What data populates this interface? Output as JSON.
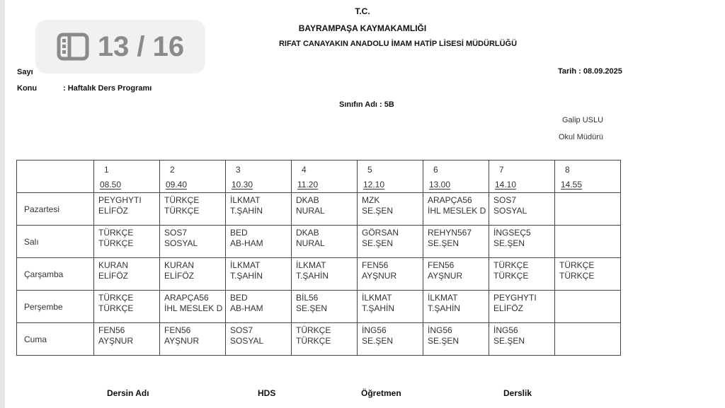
{
  "viewer": {
    "page_indicator": "13 / 16",
    "icon": "sidebar-pages-icon"
  },
  "header": {
    "line1": "T.C.",
    "line2": "BAYRAMPAŞA KAYMAKAMLIĞI",
    "line3": "RIFAT CANAYAKIN ANADOLU İMAM HATİP LİSESİ MÜDÜRLÜĞÜ"
  },
  "meta": {
    "sayi_label": "Sayı",
    "tarih": "Tarih  :  08.09.2025",
    "konu_label": "Konu",
    "konu_value": ": Haftalık Ders Programı",
    "class_name": "Sınıfın Adı : 5B",
    "principal_name": "Galip USLU",
    "principal_title": "Okul Müdürü"
  },
  "schedule": {
    "periods": [
      {
        "num": "1",
        "time": "08.50"
      },
      {
        "num": "2",
        "time": "09.40"
      },
      {
        "num": "3",
        "time": "10.30"
      },
      {
        "num": "4",
        "time": "11.20"
      },
      {
        "num": "5",
        "time": "12.10"
      },
      {
        "num": "6",
        "time": "13.00"
      },
      {
        "num": "7",
        "time": "14.10"
      },
      {
        "num": "8",
        "time": "14.55"
      }
    ],
    "days": [
      {
        "name": "Pazartesi",
        "cells": [
          [
            "PEYGHYTI",
            "ELİFÖZ"
          ],
          [
            "TÜRKÇE",
            "TÜRKÇE"
          ],
          [
            "İLKMAT",
            "T.ŞAHİN"
          ],
          [
            "DKAB",
            "NURAL"
          ],
          [
            "MZK",
            "SE.ŞEN"
          ],
          [
            "ARAPÇA56",
            "İHL MESLEK D"
          ],
          [
            "SOS7",
            "SOSYAL"
          ],
          [
            "",
            ""
          ]
        ]
      },
      {
        "name": "Salı",
        "cells": [
          [
            "TÜRKÇE",
            "TÜRKÇE"
          ],
          [
            "SOS7",
            "SOSYAL"
          ],
          [
            "BED",
            "AB-HAM"
          ],
          [
            "DKAB",
            "NURAL"
          ],
          [
            "GÖRSAN",
            "SE.ŞEN"
          ],
          [
            "REHYN567",
            "SE.ŞEN"
          ],
          [
            "İNGSEÇ5",
            "SE.ŞEN"
          ],
          [
            "",
            ""
          ]
        ]
      },
      {
        "name": "Çarşamba",
        "cells": [
          [
            "KURAN",
            "ELİFÖZ"
          ],
          [
            "KURAN",
            "ELİFÖZ"
          ],
          [
            "İLKMAT",
            "T.ŞAHİN"
          ],
          [
            "İLKMAT",
            "T.ŞAHİN"
          ],
          [
            "FEN56",
            "AYŞNUR"
          ],
          [
            "FEN56",
            "AYŞNUR"
          ],
          [
            "TÜRKÇE",
            "TÜRKÇE"
          ],
          [
            "TÜRKÇE",
            "TÜRKÇE"
          ]
        ]
      },
      {
        "name": "Perşembe",
        "cells": [
          [
            "TÜRKÇE",
            "TÜRKÇE"
          ],
          [
            "ARAPÇA56",
            "İHL MESLEK D"
          ],
          [
            "BED",
            "AB-HAM"
          ],
          [
            "BİL56",
            "SE.ŞEN"
          ],
          [
            "İLKMAT",
            "T.ŞAHİN"
          ],
          [
            "İLKMAT",
            "T.ŞAHİN"
          ],
          [
            "PEYGHYTI",
            "ELİFÖZ"
          ],
          [
            "",
            ""
          ]
        ]
      },
      {
        "name": "Cuma",
        "cells": [
          [
            "FEN56",
            "AYŞNUR"
          ],
          [
            "FEN56",
            "AYŞNUR"
          ],
          [
            "SOS7",
            "SOSYAL"
          ],
          [
            "TÜRKÇE",
            "TÜRKÇE"
          ],
          [
            "İNG56",
            "SE.ŞEN"
          ],
          [
            "İNG56",
            "SE.ŞEN"
          ],
          [
            "İNG56",
            "SE.ŞEN"
          ],
          [
            "",
            ""
          ]
        ]
      }
    ]
  },
  "footer_headers": {
    "course": "Dersin Adı",
    "hds": "HDS",
    "teacher": "Öğretmen",
    "room": "Derslik"
  }
}
